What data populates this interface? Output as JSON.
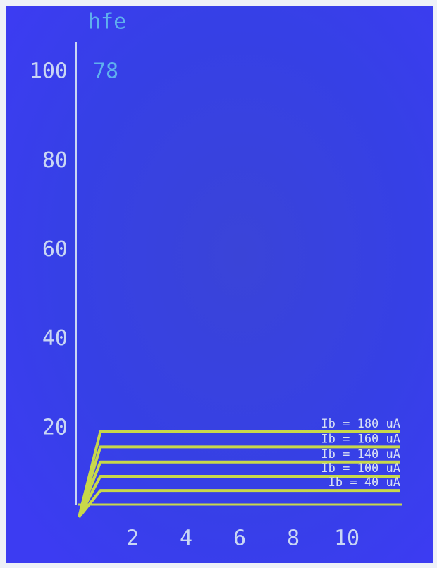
{
  "chart_data": {
    "type": "line",
    "annotation_label": "hfe",
    "annotation_value": 78,
    "xlim": [
      0,
      12
    ],
    "xticks": [
      2,
      4,
      6,
      8,
      10
    ],
    "ylim": [
      0,
      110
    ],
    "yticks": [
      20,
      40,
      60,
      80,
      100
    ],
    "color": "#c8d84a",
    "x": [
      0,
      0.8,
      12
    ],
    "series": [
      {
        "name": "Ib = 180 uA",
        "values": [
          0,
          19.2,
          19.2
        ]
      },
      {
        "name": "Ib = 160 uA",
        "values": [
          0,
          15.8,
          15.8
        ]
      },
      {
        "name": "Ib = 140 uA",
        "values": [
          0,
          12.4,
          12.4
        ]
      },
      {
        "name": "Ib = 100 uA",
        "values": [
          0,
          9.2,
          9.2
        ]
      },
      {
        "name": "Ib = 40 uA",
        "values": [
          0,
          6.0,
          6.0
        ]
      }
    ]
  }
}
